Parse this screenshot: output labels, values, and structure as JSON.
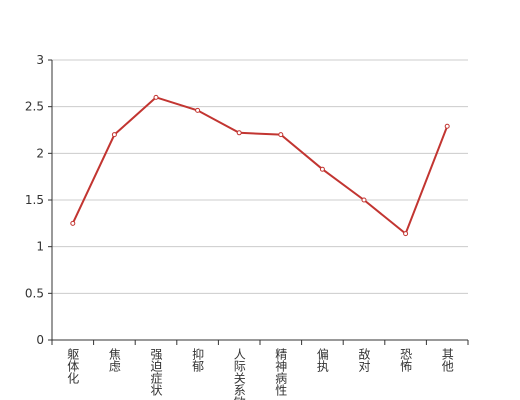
{
  "chart_data": {
    "type": "line",
    "categories": [
      "躯体化",
      "焦虑",
      "强迫症状",
      "抑郁",
      "人际关系敏感",
      "精神病性",
      "偏执",
      "敌对",
      "恐怖",
      "其他"
    ],
    "series": [
      {
        "color": "#c23531",
        "values": [
          1.25,
          2.2,
          2.6,
          2.46,
          2.22,
          2.2,
          1.83,
          1.5,
          1.14,
          2.29
        ]
      }
    ],
    "ylim": [
      0,
      3
    ],
    "yticks": [
      0,
      0.5,
      1,
      1.5,
      2,
      2.5,
      3
    ],
    "grid": true
  }
}
